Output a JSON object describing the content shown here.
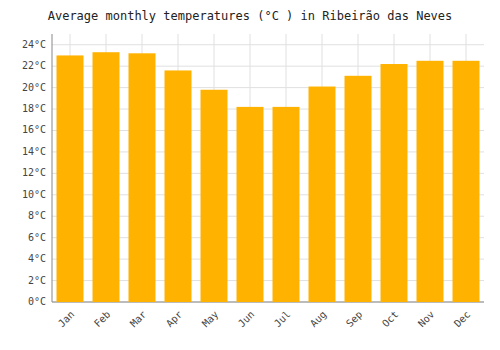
{
  "chart_data": {
    "type": "bar",
    "title": "Average monthly temperatures (°C ) in Ribeirão das Neves",
    "categories": [
      "Jan",
      "Feb",
      "Mar",
      "Apr",
      "May",
      "Jun",
      "Jul",
      "Aug",
      "Sep",
      "Oct",
      "Nov",
      "Dec"
    ],
    "values": [
      23.0,
      23.3,
      23.2,
      21.6,
      19.8,
      18.2,
      18.2,
      20.1,
      21.1,
      22.2,
      22.5,
      22.5
    ],
    "color": "#FFB300",
    "ylim": [
      0,
      25
    ],
    "yticks": [
      {
        "value": 0,
        "label": "0°C"
      },
      {
        "value": 2,
        "label": "2°C"
      },
      {
        "value": 4,
        "label": "4°C"
      },
      {
        "value": 6,
        "label": "6°C"
      },
      {
        "value": 8,
        "label": "8°C"
      },
      {
        "value": 10,
        "label": "10°C"
      },
      {
        "value": 12,
        "label": "12°C"
      },
      {
        "value": 14,
        "label": "14°C"
      },
      {
        "value": 16,
        "label": "16°C"
      },
      {
        "value": 18,
        "label": "18°C"
      },
      {
        "value": 20,
        "label": "20°C"
      },
      {
        "value": 22,
        "label": "22°C"
      },
      {
        "value": 24,
        "label": "24°C"
      }
    ],
    "grid": true
  }
}
